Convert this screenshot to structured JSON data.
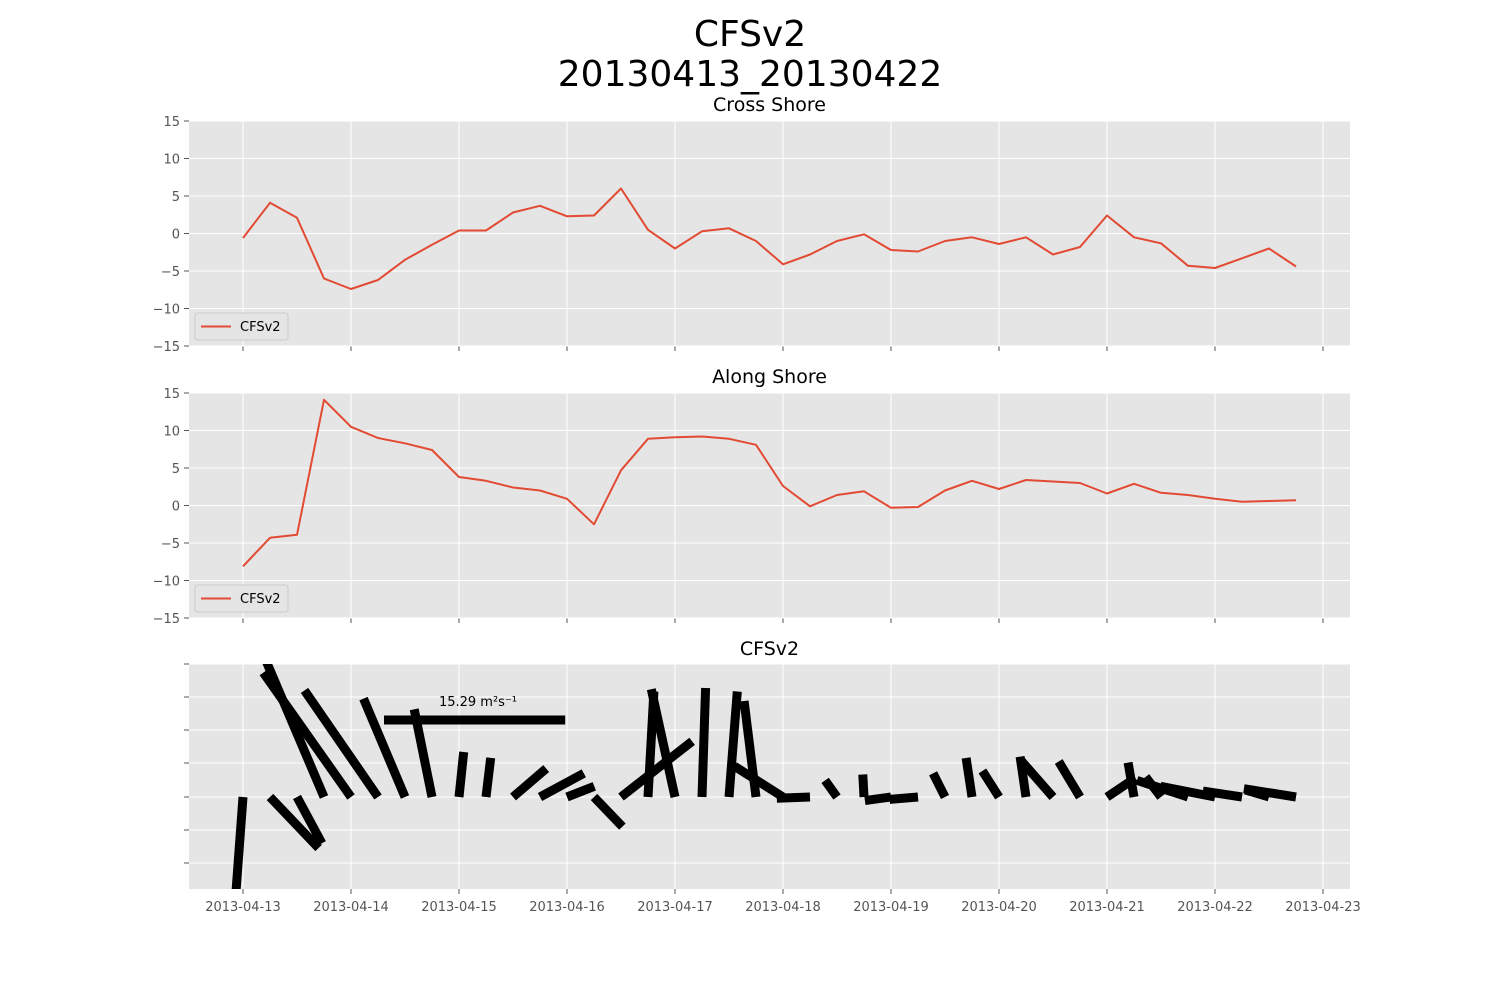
{
  "figure": {
    "title_line1": "CFSv2",
    "title_line2": "20130413_20130422"
  },
  "chart_data": [
    {
      "type": "line",
      "title": "Cross Shore",
      "ylim": [
        -15,
        15
      ],
      "yticks": [
        15,
        10,
        5,
        0,
        -5,
        -10,
        -15
      ],
      "ytick_labels": [
        "15",
        "10",
        "5",
        "0",
        "−5",
        "−10",
        "−15"
      ],
      "grid": true,
      "legend": "lower-left",
      "series": [
        {
          "name": "CFSv2",
          "color": "#E24A33",
          "x": [
            "2013-04-13 00:00",
            "2013-04-13 06:00",
            "2013-04-13 12:00",
            "2013-04-13 18:00",
            "2013-04-14 00:00",
            "2013-04-14 06:00",
            "2013-04-14 12:00",
            "2013-04-14 18:00",
            "2013-04-15 00:00",
            "2013-04-15 06:00",
            "2013-04-15 12:00",
            "2013-04-15 18:00",
            "2013-04-16 00:00",
            "2013-04-16 06:00",
            "2013-04-16 12:00",
            "2013-04-16 18:00",
            "2013-04-17 00:00",
            "2013-04-17 06:00",
            "2013-04-17 12:00",
            "2013-04-17 18:00",
            "2013-04-18 00:00",
            "2013-04-18 06:00",
            "2013-04-18 12:00",
            "2013-04-18 18:00",
            "2013-04-19 00:00",
            "2013-04-19 06:00",
            "2013-04-19 12:00",
            "2013-04-19 18:00",
            "2013-04-20 00:00",
            "2013-04-20 06:00",
            "2013-04-20 12:00",
            "2013-04-20 18:00",
            "2013-04-21 00:00",
            "2013-04-21 06:00",
            "2013-04-21 12:00",
            "2013-04-21 18:00",
            "2013-04-22 00:00",
            "2013-04-22 06:00",
            "2013-04-22 12:00",
            "2013-04-22 18:00"
          ],
          "values": [
            -0.6,
            4.1,
            2.1,
            -6.0,
            -7.4,
            -6.2,
            -3.5,
            -1.5,
            0.4,
            0.4,
            2.8,
            3.7,
            2.3,
            2.4,
            6.0,
            0.5,
            -2.0,
            0.3,
            0.7,
            -1.0,
            -4.1,
            -2.8,
            -1.0,
            -0.1,
            -2.2,
            -2.4,
            -1.0,
            -0.5,
            -1.4,
            -0.5,
            -2.8,
            -1.8,
            2.4,
            -0.5,
            -1.3,
            -4.3,
            -4.6,
            -3.3,
            -2.0,
            -4.4
          ]
        }
      ]
    },
    {
      "type": "line",
      "title": "Along Shore",
      "ylim": [
        -15,
        15
      ],
      "yticks": [
        15,
        10,
        5,
        0,
        -5,
        -10,
        -15
      ],
      "ytick_labels": [
        "15",
        "10",
        "5",
        "0",
        "−5",
        "−10",
        "−15"
      ],
      "grid": true,
      "legend": "lower-left",
      "series": [
        {
          "name": "CFSv2",
          "color": "#E24A33",
          "x": [
            "2013-04-13 00:00",
            "2013-04-13 06:00",
            "2013-04-13 12:00",
            "2013-04-13 18:00",
            "2013-04-14 00:00",
            "2013-04-14 06:00",
            "2013-04-14 12:00",
            "2013-04-14 18:00",
            "2013-04-15 00:00",
            "2013-04-15 06:00",
            "2013-04-15 12:00",
            "2013-04-15 18:00",
            "2013-04-16 00:00",
            "2013-04-16 06:00",
            "2013-04-16 12:00",
            "2013-04-16 18:00",
            "2013-04-17 00:00",
            "2013-04-17 06:00",
            "2013-04-17 12:00",
            "2013-04-17 18:00",
            "2013-04-18 00:00",
            "2013-04-18 06:00",
            "2013-04-18 12:00",
            "2013-04-18 18:00",
            "2013-04-19 00:00",
            "2013-04-19 06:00",
            "2013-04-19 12:00",
            "2013-04-19 18:00",
            "2013-04-20 00:00",
            "2013-04-20 06:00",
            "2013-04-20 12:00",
            "2013-04-20 18:00",
            "2013-04-21 00:00",
            "2013-04-21 06:00",
            "2013-04-21 12:00",
            "2013-04-21 18:00",
            "2013-04-22 00:00",
            "2013-04-22 06:00",
            "2013-04-22 12:00",
            "2013-04-22 18:00"
          ],
          "values": [
            -8.1,
            -4.3,
            -3.9,
            14.1,
            10.5,
            9.0,
            8.3,
            7.4,
            3.8,
            3.3,
            2.4,
            2.0,
            0.9,
            -2.5,
            4.7,
            8.9,
            9.1,
            9.2,
            8.9,
            8.1,
            2.6,
            -0.1,
            1.4,
            1.9,
            -0.3,
            -0.2,
            2.0,
            3.3,
            2.2,
            3.4,
            3.2,
            3.0,
            1.6,
            2.9,
            1.7,
            1.4,
            0.9,
            0.5,
            0.6,
            0.7
          ]
        }
      ]
    },
    {
      "type": "quiver",
      "title": "CFSv2",
      "grid": true,
      "key_label": "15.29 m²s⁻¹",
      "key_value": 15.29,
      "x": [
        "2013-04-13 00:00",
        "2013-04-13 06:00",
        "2013-04-13 12:00",
        "2013-04-13 18:00",
        "2013-04-14 00:00",
        "2013-04-14 06:00",
        "2013-04-14 12:00",
        "2013-04-14 18:00",
        "2013-04-15 00:00",
        "2013-04-15 06:00",
        "2013-04-15 12:00",
        "2013-04-15 18:00",
        "2013-04-16 00:00",
        "2013-04-16 06:00",
        "2013-04-16 12:00",
        "2013-04-16 18:00",
        "2013-04-17 00:00",
        "2013-04-17 06:00",
        "2013-04-17 12:00",
        "2013-04-17 18:00",
        "2013-04-18 00:00",
        "2013-04-18 06:00",
        "2013-04-18 12:00",
        "2013-04-18 18:00",
        "2013-04-19 00:00",
        "2013-04-19 06:00",
        "2013-04-19 12:00",
        "2013-04-19 18:00",
        "2013-04-20 00:00",
        "2013-04-20 06:00",
        "2013-04-20 12:00",
        "2013-04-20 18:00",
        "2013-04-21 00:00",
        "2013-04-21 06:00",
        "2013-04-21 12:00",
        "2013-04-21 18:00",
        "2013-04-22 00:00",
        "2013-04-22 06:00",
        "2013-04-22 12:00",
        "2013-04-22 18:00"
      ],
      "u": [
        -0.6,
        4.1,
        2.1,
        -6.0,
        -7.4,
        -6.2,
        -3.5,
        -1.5,
        0.4,
        0.4,
        2.8,
        3.7,
        2.3,
        2.4,
        6.0,
        0.5,
        -2.0,
        0.3,
        0.7,
        -1.0,
        -4.1,
        -2.8,
        -1.0,
        -0.1,
        -2.2,
        -2.4,
        -1.0,
        -0.5,
        -1.4,
        -0.5,
        -2.8,
        -1.8,
        2.4,
        -0.5,
        -1.3,
        -4.3,
        -4.6,
        -3.3,
        -2.0,
        -4.4
      ],
      "v": [
        -8.1,
        -4.3,
        -3.9,
        14.1,
        10.5,
        9.0,
        8.3,
        7.4,
        3.8,
        3.3,
        2.4,
        2.0,
        0.9,
        -2.5,
        4.7,
        8.9,
        9.1,
        9.2,
        8.9,
        8.1,
        2.6,
        -0.1,
        1.4,
        1.9,
        -0.3,
        -0.2,
        2.0,
        3.3,
        2.2,
        3.4,
        3.2,
        3.0,
        1.6,
        2.9,
        1.7,
        1.4,
        0.9,
        0.5,
        0.6,
        0.7
      ]
    }
  ],
  "xaxis": {
    "range": [
      "2013-04-12 12:00",
      "2013-04-23 06:00"
    ],
    "tick_labels": [
      "2013-04-13",
      "2013-04-14",
      "2013-04-15",
      "2013-04-16",
      "2013-04-17",
      "2013-04-18",
      "2013-04-19",
      "2013-04-20",
      "2013-04-21",
      "2013-04-22",
      "2013-04-23"
    ]
  },
  "colors": {
    "axes_bg": "#E5E5E5",
    "grid": "#FFFFFF",
    "line": "#E24A33",
    "tick_text": "#555555",
    "quiver": "#000000"
  }
}
